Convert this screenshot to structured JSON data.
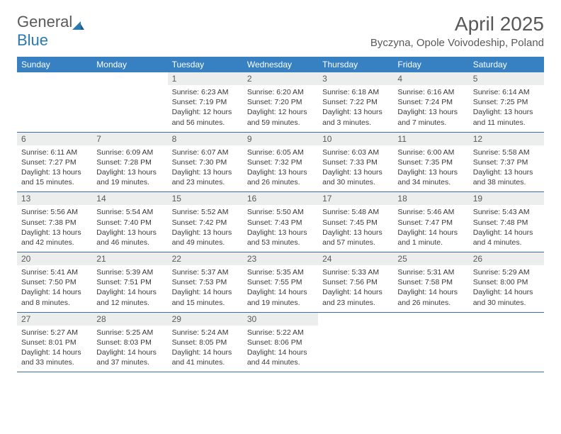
{
  "brand": {
    "part1": "General",
    "part2": "Blue"
  },
  "title": "April 2025",
  "location": "Byczyna, Opole Voivodeship, Poland",
  "colors": {
    "header_bg": "#3781c2",
    "header_text": "#ffffff",
    "daynum_bg": "#eceded",
    "border": "#3a6ea5",
    "text": "#3a3a3a",
    "title_text": "#595959",
    "logo_gray": "#5a5a5a",
    "logo_blue": "#2a7ab0"
  },
  "weekdays": [
    "Sunday",
    "Monday",
    "Tuesday",
    "Wednesday",
    "Thursday",
    "Friday",
    "Saturday"
  ],
  "weeks": [
    [
      null,
      null,
      {
        "n": "1",
        "sr": "6:23 AM",
        "ss": "7:19 PM",
        "dl": "12 hours and 56 minutes."
      },
      {
        "n": "2",
        "sr": "6:20 AM",
        "ss": "7:20 PM",
        "dl": "12 hours and 59 minutes."
      },
      {
        "n": "3",
        "sr": "6:18 AM",
        "ss": "7:22 PM",
        "dl": "13 hours and 3 minutes."
      },
      {
        "n": "4",
        "sr": "6:16 AM",
        "ss": "7:24 PM",
        "dl": "13 hours and 7 minutes."
      },
      {
        "n": "5",
        "sr": "6:14 AM",
        "ss": "7:25 PM",
        "dl": "13 hours and 11 minutes."
      }
    ],
    [
      {
        "n": "6",
        "sr": "6:11 AM",
        "ss": "7:27 PM",
        "dl": "13 hours and 15 minutes."
      },
      {
        "n": "7",
        "sr": "6:09 AM",
        "ss": "7:28 PM",
        "dl": "13 hours and 19 minutes."
      },
      {
        "n": "8",
        "sr": "6:07 AM",
        "ss": "7:30 PM",
        "dl": "13 hours and 23 minutes."
      },
      {
        "n": "9",
        "sr": "6:05 AM",
        "ss": "7:32 PM",
        "dl": "13 hours and 26 minutes."
      },
      {
        "n": "10",
        "sr": "6:03 AM",
        "ss": "7:33 PM",
        "dl": "13 hours and 30 minutes."
      },
      {
        "n": "11",
        "sr": "6:00 AM",
        "ss": "7:35 PM",
        "dl": "13 hours and 34 minutes."
      },
      {
        "n": "12",
        "sr": "5:58 AM",
        "ss": "7:37 PM",
        "dl": "13 hours and 38 minutes."
      }
    ],
    [
      {
        "n": "13",
        "sr": "5:56 AM",
        "ss": "7:38 PM",
        "dl": "13 hours and 42 minutes."
      },
      {
        "n": "14",
        "sr": "5:54 AM",
        "ss": "7:40 PM",
        "dl": "13 hours and 46 minutes."
      },
      {
        "n": "15",
        "sr": "5:52 AM",
        "ss": "7:42 PM",
        "dl": "13 hours and 49 minutes."
      },
      {
        "n": "16",
        "sr": "5:50 AM",
        "ss": "7:43 PM",
        "dl": "13 hours and 53 minutes."
      },
      {
        "n": "17",
        "sr": "5:48 AM",
        "ss": "7:45 PM",
        "dl": "13 hours and 57 minutes."
      },
      {
        "n": "18",
        "sr": "5:46 AM",
        "ss": "7:47 PM",
        "dl": "14 hours and 1 minute."
      },
      {
        "n": "19",
        "sr": "5:43 AM",
        "ss": "7:48 PM",
        "dl": "14 hours and 4 minutes."
      }
    ],
    [
      {
        "n": "20",
        "sr": "5:41 AM",
        "ss": "7:50 PM",
        "dl": "14 hours and 8 minutes."
      },
      {
        "n": "21",
        "sr": "5:39 AM",
        "ss": "7:51 PM",
        "dl": "14 hours and 12 minutes."
      },
      {
        "n": "22",
        "sr": "5:37 AM",
        "ss": "7:53 PM",
        "dl": "14 hours and 15 minutes."
      },
      {
        "n": "23",
        "sr": "5:35 AM",
        "ss": "7:55 PM",
        "dl": "14 hours and 19 minutes."
      },
      {
        "n": "24",
        "sr": "5:33 AM",
        "ss": "7:56 PM",
        "dl": "14 hours and 23 minutes."
      },
      {
        "n": "25",
        "sr": "5:31 AM",
        "ss": "7:58 PM",
        "dl": "14 hours and 26 minutes."
      },
      {
        "n": "26",
        "sr": "5:29 AM",
        "ss": "8:00 PM",
        "dl": "14 hours and 30 minutes."
      }
    ],
    [
      {
        "n": "27",
        "sr": "5:27 AM",
        "ss": "8:01 PM",
        "dl": "14 hours and 33 minutes."
      },
      {
        "n": "28",
        "sr": "5:25 AM",
        "ss": "8:03 PM",
        "dl": "14 hours and 37 minutes."
      },
      {
        "n": "29",
        "sr": "5:24 AM",
        "ss": "8:05 PM",
        "dl": "14 hours and 41 minutes."
      },
      {
        "n": "30",
        "sr": "5:22 AM",
        "ss": "8:06 PM",
        "dl": "14 hours and 44 minutes."
      },
      null,
      null,
      null
    ]
  ],
  "labels": {
    "sunrise": "Sunrise:",
    "sunset": "Sunset:",
    "daylight": "Daylight:"
  }
}
